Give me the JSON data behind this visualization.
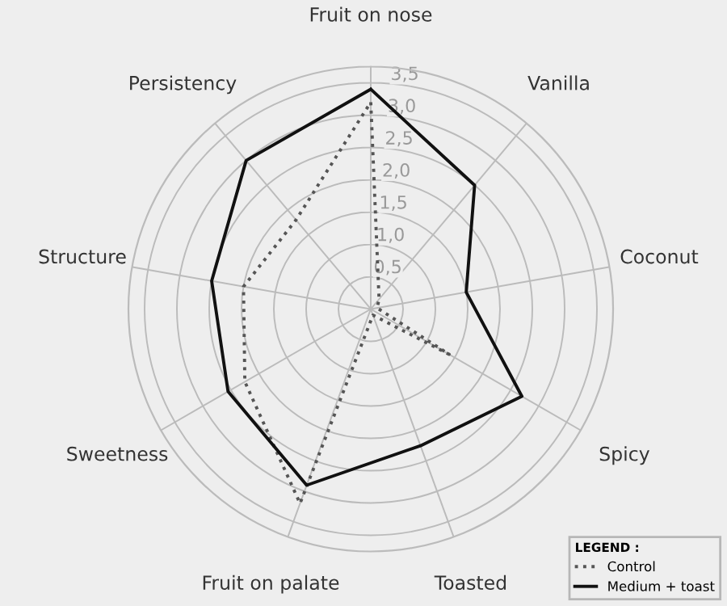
{
  "chart_data": {
    "type": "radar",
    "categories": [
      "Fruit on nose",
      "Vanilla",
      "Coconut",
      "Spicy",
      "Toasted",
      "Fruit on palate",
      "Sweetness",
      "Structure",
      "Persistency"
    ],
    "series": [
      {
        "name": "Control",
        "color": "#555555",
        "line_style": "dotted",
        "values": [
          3.2,
          0.2,
          0.1,
          1.4,
          0.1,
          3.2,
          2.25,
          2.0,
          1.8
        ]
      },
      {
        "name": "Medium + toast",
        "color": "#111111",
        "line_style": "solid",
        "values": [
          3.4,
          2.5,
          1.5,
          2.7,
          2.25,
          2.9,
          2.55,
          2.5,
          3.0
        ]
      }
    ],
    "ylim": [
      0,
      3.75
    ],
    "yticks": [
      {
        "value": 0.5,
        "label": "0,5"
      },
      {
        "value": 1.0,
        "label": "1,0"
      },
      {
        "value": 1.5,
        "label": "1,5"
      },
      {
        "value": 2.0,
        "label": "2,0"
      },
      {
        "value": 2.5,
        "label": "2,5"
      },
      {
        "value": 3.0,
        "label": "3,0"
      },
      {
        "value": 3.5,
        "label": "3,5"
      }
    ],
    "grid": true,
    "legend": "bottom right",
    "legend_title": "LEGEND :",
    "marker": "none"
  }
}
